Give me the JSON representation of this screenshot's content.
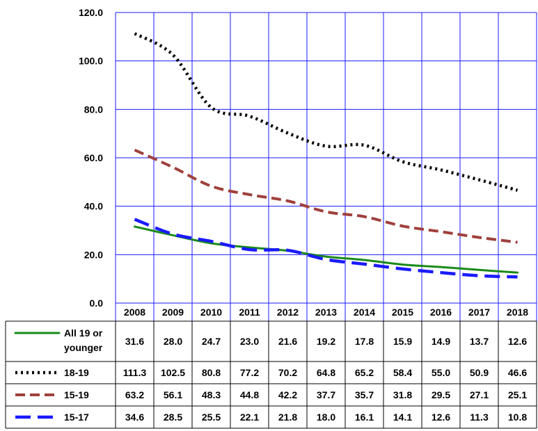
{
  "chart_data": {
    "type": "line",
    "title": "",
    "xlabel": "",
    "ylabel": "",
    "ylim": [
      0,
      120
    ],
    "y_ticks": [
      "0.0",
      "20.0",
      "40.0",
      "60.0",
      "80.0",
      "100.0",
      "120.0"
    ],
    "grid": true,
    "legend_placement": "data-table-left",
    "categories": [
      "2008",
      "2009",
      "2010",
      "2011",
      "2012",
      "2013",
      "2014",
      "2015",
      "2016",
      "2017",
      "2018"
    ],
    "series": [
      {
        "name": "All 19 or younger",
        "name_lines": [
          "All 19 or",
          "younger"
        ],
        "color": "#1a8a1a",
        "style": "solid",
        "values": [
          31.6,
          28.0,
          24.7,
          23.0,
          21.6,
          19.2,
          17.8,
          15.9,
          14.9,
          13.7,
          12.6
        ],
        "labels": [
          "31.6",
          "28.0",
          "24.7",
          "23.0",
          "21.6",
          "19.2",
          "17.8",
          "15.9",
          "14.9",
          "13.7",
          "12.6"
        ]
      },
      {
        "name": "18-19",
        "name_lines": [
          "18-19"
        ],
        "color": "#000000",
        "style": "dotted",
        "values": [
          111.3,
          102.5,
          80.8,
          77.2,
          70.2,
          64.8,
          65.2,
          58.4,
          55.0,
          50.9,
          46.6
        ],
        "labels": [
          "111.3",
          "102.5",
          "80.8",
          "77.2",
          "70.2",
          "64.8",
          "65.2",
          "58.4",
          "55.0",
          "50.9",
          "46.6"
        ]
      },
      {
        "name": "15-19",
        "name_lines": [
          "15-19"
        ],
        "color": "#a0403c",
        "style": "dashed",
        "values": [
          63.2,
          56.1,
          48.3,
          44.8,
          42.2,
          37.7,
          35.7,
          31.8,
          29.5,
          27.1,
          25.1
        ],
        "labels": [
          "63.2",
          "56.1",
          "48.3",
          "44.8",
          "42.2",
          "37.7",
          "35.7",
          "31.8",
          "29.5",
          "27.1",
          "25.1"
        ]
      },
      {
        "name": "15-17",
        "name_lines": [
          "15-17"
        ],
        "color": "#1a1aff",
        "style": "longdash",
        "values": [
          34.6,
          28.5,
          25.5,
          22.1,
          21.8,
          18.0,
          16.1,
          14.1,
          12.6,
          11.3,
          10.8
        ],
        "labels": [
          "34.6",
          "28.5",
          "25.5",
          "22.1",
          "21.8",
          "18.0",
          "16.1",
          "14.1",
          "12.6",
          "11.3",
          "10.8"
        ]
      }
    ],
    "colors": {
      "grid": "#1a1aff",
      "table_border": "#000000"
    }
  }
}
